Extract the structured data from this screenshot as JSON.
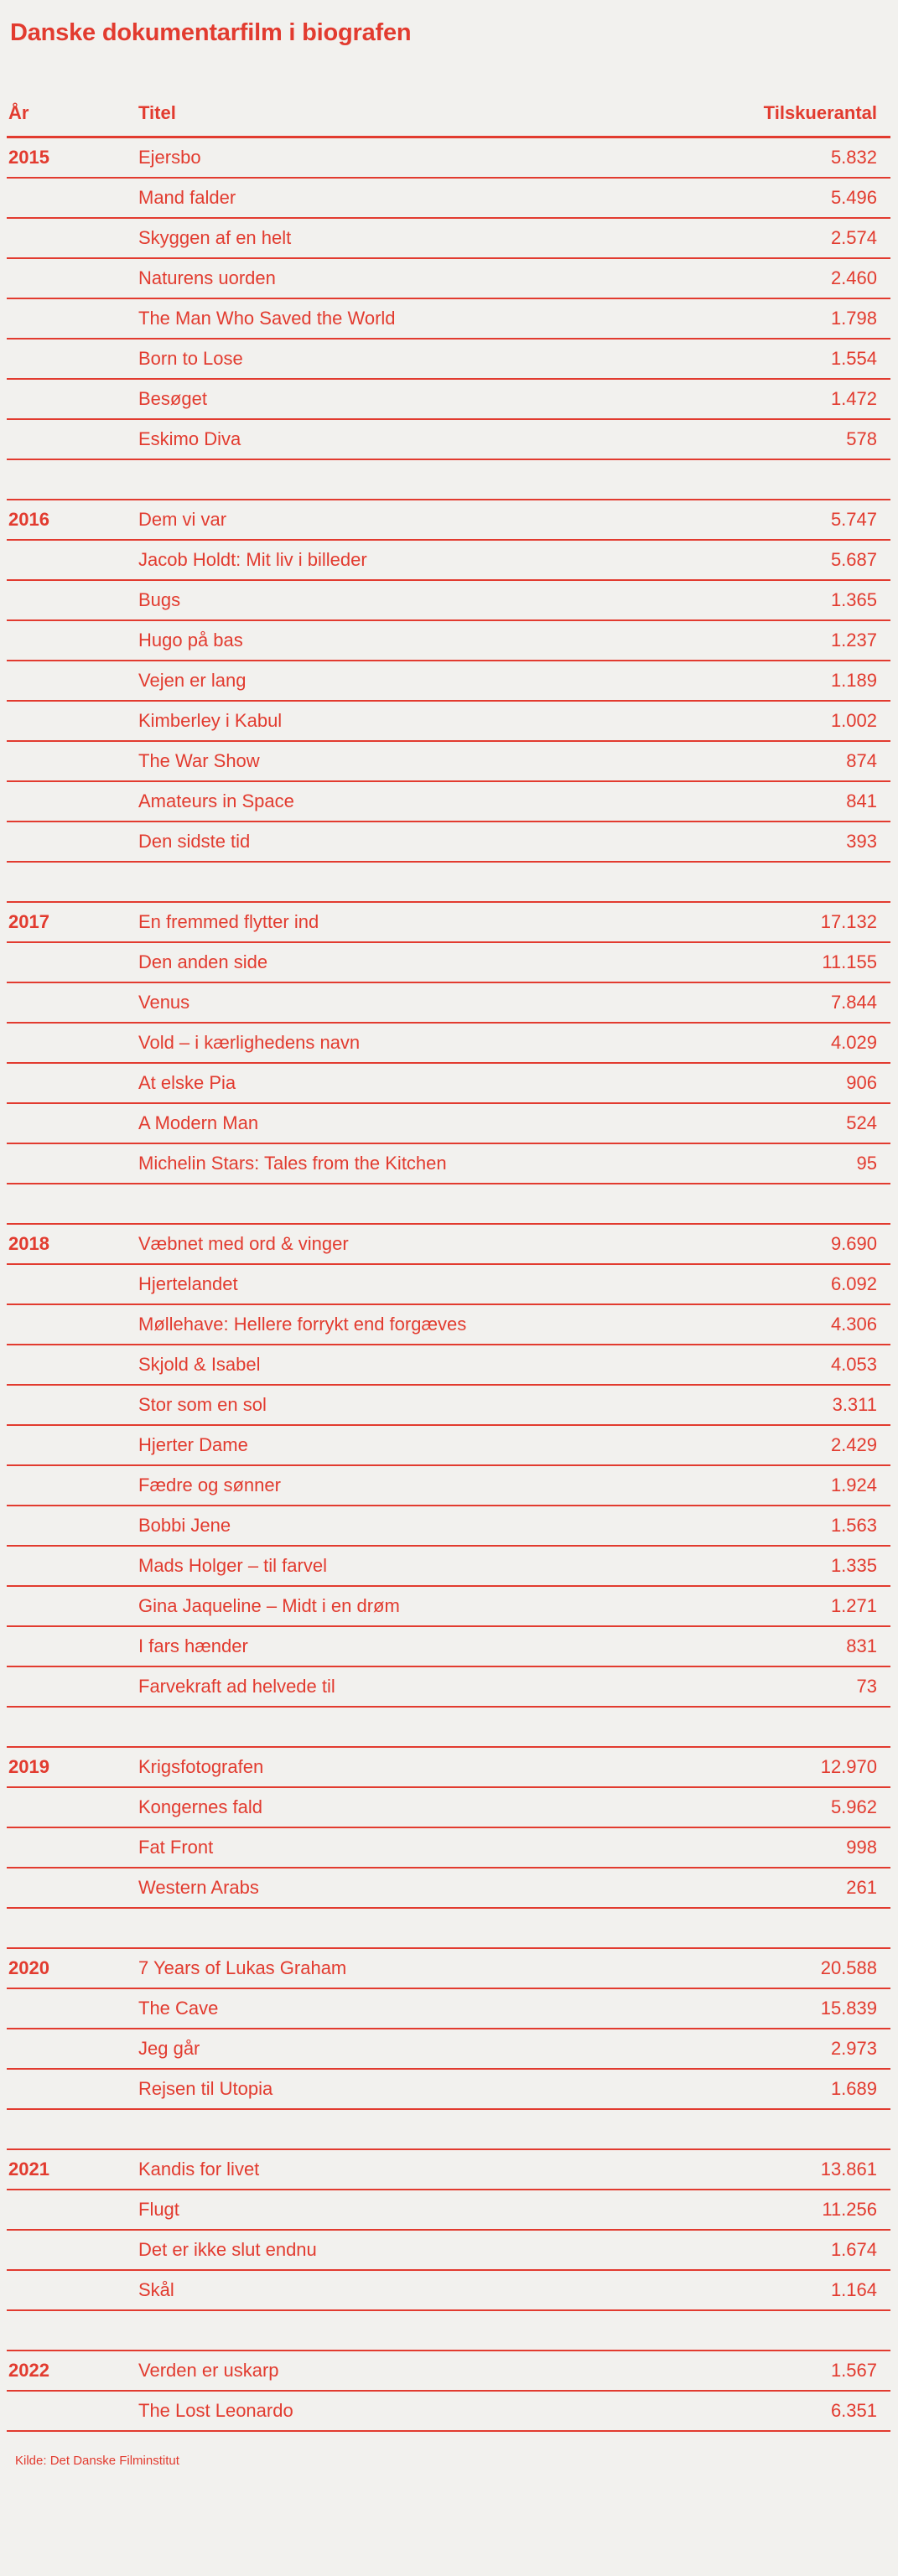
{
  "page": {
    "title": "Danske dokumentarfilm i biografen",
    "source": "Kilde: Det Danske Filminstitut"
  },
  "table": {
    "headers": {
      "year": "År",
      "title": "Titel",
      "count": "Tilskuerantal"
    }
  },
  "colors": {
    "accent": "#e23b2f",
    "background": "#f2f1ee"
  },
  "chart_data": {
    "type": "table",
    "title": "Danske dokumentarfilm i biografen",
    "columns": [
      "År",
      "Titel",
      "Tilskuerantal"
    ],
    "source": "Kilde: Det Danske Filminstitut",
    "groups": [
      {
        "year": "2015",
        "films": [
          {
            "title": "Ejersbo",
            "count": 5832
          },
          {
            "title": "Mand falder",
            "count": 5496
          },
          {
            "title": "Skyggen af en helt",
            "count": 2574
          },
          {
            "title": "Naturens uorden",
            "count": 2460
          },
          {
            "title": "The Man Who Saved the World",
            "count": 1798
          },
          {
            "title": "Born to Lose",
            "count": 1554
          },
          {
            "title": "Besøget",
            "count": 1472
          },
          {
            "title": "Eskimo Diva",
            "count": 578
          }
        ]
      },
      {
        "year": "2016",
        "films": [
          {
            "title": "Dem vi var",
            "count": 5747
          },
          {
            "title": "Jacob Holdt: Mit liv i billeder",
            "count": 5687
          },
          {
            "title": "Bugs",
            "count": 1365
          },
          {
            "title": "Hugo på bas",
            "count": 1237
          },
          {
            "title": "Vejen er lang",
            "count": 1189
          },
          {
            "title": "Kimberley i Kabul",
            "count": 1002
          },
          {
            "title": "The War Show",
            "count": 874
          },
          {
            "title": "Amateurs in Space",
            "count": 841
          },
          {
            "title": "Den sidste tid",
            "count": 393
          }
        ]
      },
      {
        "year": "2017",
        "films": [
          {
            "title": "En fremmed flytter ind",
            "count": 17132
          },
          {
            "title": "Den anden side",
            "count": 11155
          },
          {
            "title": "Venus",
            "count": 7844
          },
          {
            "title": "Vold – i kærlighedens navn",
            "count": 4029
          },
          {
            "title": "At elske Pia",
            "count": 906
          },
          {
            "title": "A Modern Man",
            "count": 524
          },
          {
            "title": "Michelin Stars: Tales from the Kitchen",
            "count": 95
          }
        ]
      },
      {
        "year": "2018",
        "films": [
          {
            "title": "Væbnet med ord & vinger",
            "count": 9690
          },
          {
            "title": "Hjertelandet",
            "count": 6092
          },
          {
            "title": "Møllehave: Hellere forrykt end forgæves",
            "count": 4306
          },
          {
            "title": "Skjold & Isabel",
            "count": 4053
          },
          {
            "title": "Stor som en sol",
            "count": 3311
          },
          {
            "title": "Hjerter Dame",
            "count": 2429
          },
          {
            "title": "Fædre og sønner",
            "count": 1924
          },
          {
            "title": "Bobbi Jene",
            "count": 1563
          },
          {
            "title": "Mads Holger – til farvel",
            "count": 1335
          },
          {
            "title": "Gina Jaqueline – Midt i en drøm",
            "count": 1271
          },
          {
            "title": "I fars hænder",
            "count": 831
          },
          {
            "title": "Farvekraft ad helvede til",
            "count": 73
          }
        ]
      },
      {
        "year": "2019",
        "films": [
          {
            "title": "Krigsfotografen",
            "count": 12970
          },
          {
            "title": "Kongernes fald",
            "count": 5962
          },
          {
            "title": "Fat Front",
            "count": 998
          },
          {
            "title": "Western Arabs",
            "count": 261
          }
        ]
      },
      {
        "year": "2020",
        "films": [
          {
            "title": "7 Years of Lukas Graham",
            "count": 20588
          },
          {
            "title": "The Cave",
            "count": 15839
          },
          {
            "title": "Jeg går",
            "count": 2973
          },
          {
            "title": "Rejsen til Utopia",
            "count": 1689
          }
        ]
      },
      {
        "year": "2021",
        "films": [
          {
            "title": "Kandis for livet",
            "count": 13861
          },
          {
            "title": "Flugt",
            "count": 11256
          },
          {
            "title": "Det er ikke slut endnu",
            "count": 1674
          },
          {
            "title": "Skål",
            "count": 1164
          }
        ]
      },
      {
        "year": "2022",
        "films": [
          {
            "title": "Verden er uskarp",
            "count": 1567
          },
          {
            "title": "The Lost Leonardo",
            "count": 6351
          }
        ]
      }
    ]
  }
}
